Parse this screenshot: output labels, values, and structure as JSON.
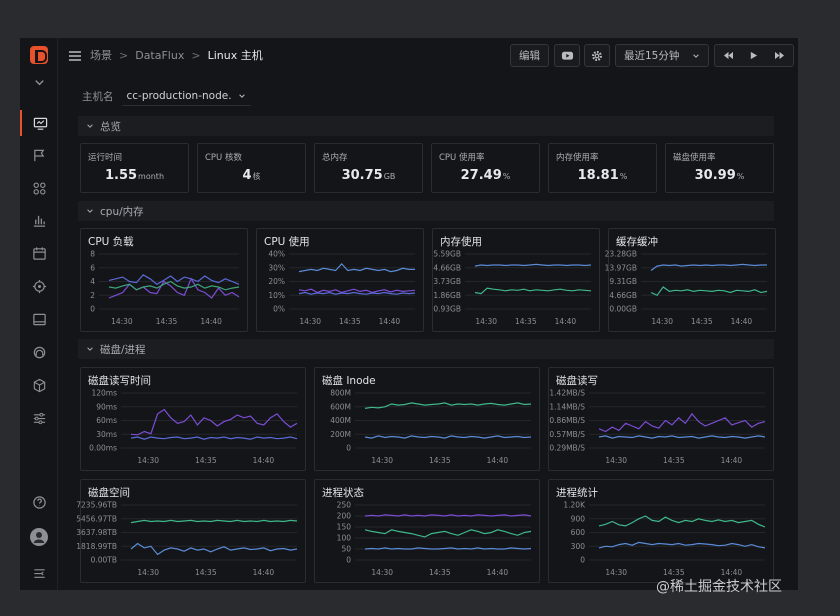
{
  "breadcrumb": {
    "root": "场景",
    "mid": "DataFlux",
    "current": "Linux 主机"
  },
  "toolbar": {
    "edit": "编辑",
    "time_range": "最近15分钟"
  },
  "host": {
    "label": "主机名",
    "value": "cc-production-node."
  },
  "sections": {
    "overview": "总览",
    "cpu_mem": "cpu/内存",
    "disk_proc": "磁盘/进程"
  },
  "stats": [
    {
      "title": "运行时间",
      "value": "1.55",
      "unit": "month"
    },
    {
      "title": "CPU 核数",
      "value": "4",
      "unit": "核"
    },
    {
      "title": "总内存",
      "value": "30.75",
      "unit": "GB"
    },
    {
      "title": "CPU 使用率",
      "value": "27.49",
      "unit": "%"
    },
    {
      "title": "内存使用率",
      "value": "18.81",
      "unit": "%"
    },
    {
      "title": "磁盘使用率",
      "value": "30.99",
      "unit": "%"
    }
  ],
  "time_ticks": [
    "14:30",
    "14:35",
    "14:40"
  ],
  "panels": [
    {
      "title": "CPU 负载",
      "yticks": [
        "8",
        "6",
        "4",
        "2",
        "0"
      ],
      "colors": [
        "#5b6bd8",
        "#7c4dd6",
        "#3fa37c"
      ]
    },
    {
      "title": "CPU 使用",
      "yticks": [
        "40%",
        "30%",
        "20%",
        "10%",
        "0%"
      ],
      "colors": [
        "#5b8bd8",
        "#7c4dd6",
        "#5b6bd8"
      ]
    },
    {
      "title": "内存使用",
      "yticks": [
        "5.59GB",
        "4.66GB",
        "3.73GB",
        "1.86GB",
        "0.93GB"
      ],
      "colors": [
        "#5b8bd8",
        "#3fb88a"
      ]
    },
    {
      "title": "缓存缓冲",
      "yticks": [
        "23.28GB",
        "13.97GB",
        "9.31GB",
        "4.66GB",
        "0.00GB"
      ],
      "colors": [
        "#5b8bd8",
        "#3fb88a"
      ]
    },
    {
      "title": "磁盘读写时间",
      "yticks": [
        "120ms",
        "90ms",
        "60ms",
        "30ms",
        "0.00ms"
      ],
      "colors": [
        "#7c4dd6",
        "#5b6bd8"
      ]
    },
    {
      "title": "磁盘 Inode",
      "yticks": [
        "800M",
        "600M",
        "400M",
        "200M",
        "0"
      ],
      "colors": [
        "#3fb88a",
        "#5b8bd8"
      ]
    },
    {
      "title": "磁盘读写",
      "yticks": [
        "1.42MB/S",
        "1.14MB/S",
        "0.86MB/S",
        "0.57MB/S",
        "0.29MB/S"
      ],
      "colors": [
        "#7c4dd6",
        "#5b8bd8"
      ]
    },
    {
      "title": "磁盘空间",
      "yticks": [
        "7235.96TB",
        "5456.97TB",
        "3637.98TB",
        "1818.99TB",
        "0.00TB"
      ],
      "colors": [
        "#3fb88a",
        "#5b8bd8"
      ]
    },
    {
      "title": "进程状态",
      "yticks": [
        "250",
        "200",
        "150",
        "100",
        "50",
        "0"
      ],
      "colors": [
        "#7c4dd6",
        "#3fb88a",
        "#5b8bd8"
      ]
    },
    {
      "title": "进程统计",
      "yticks": [
        "1.20K",
        "900",
        "600",
        "300",
        "0"
      ],
      "colors": [
        "#3fb88a",
        "#5b8bd8"
      ]
    }
  ],
  "watermark": "@稀土掘金技术社区"
}
